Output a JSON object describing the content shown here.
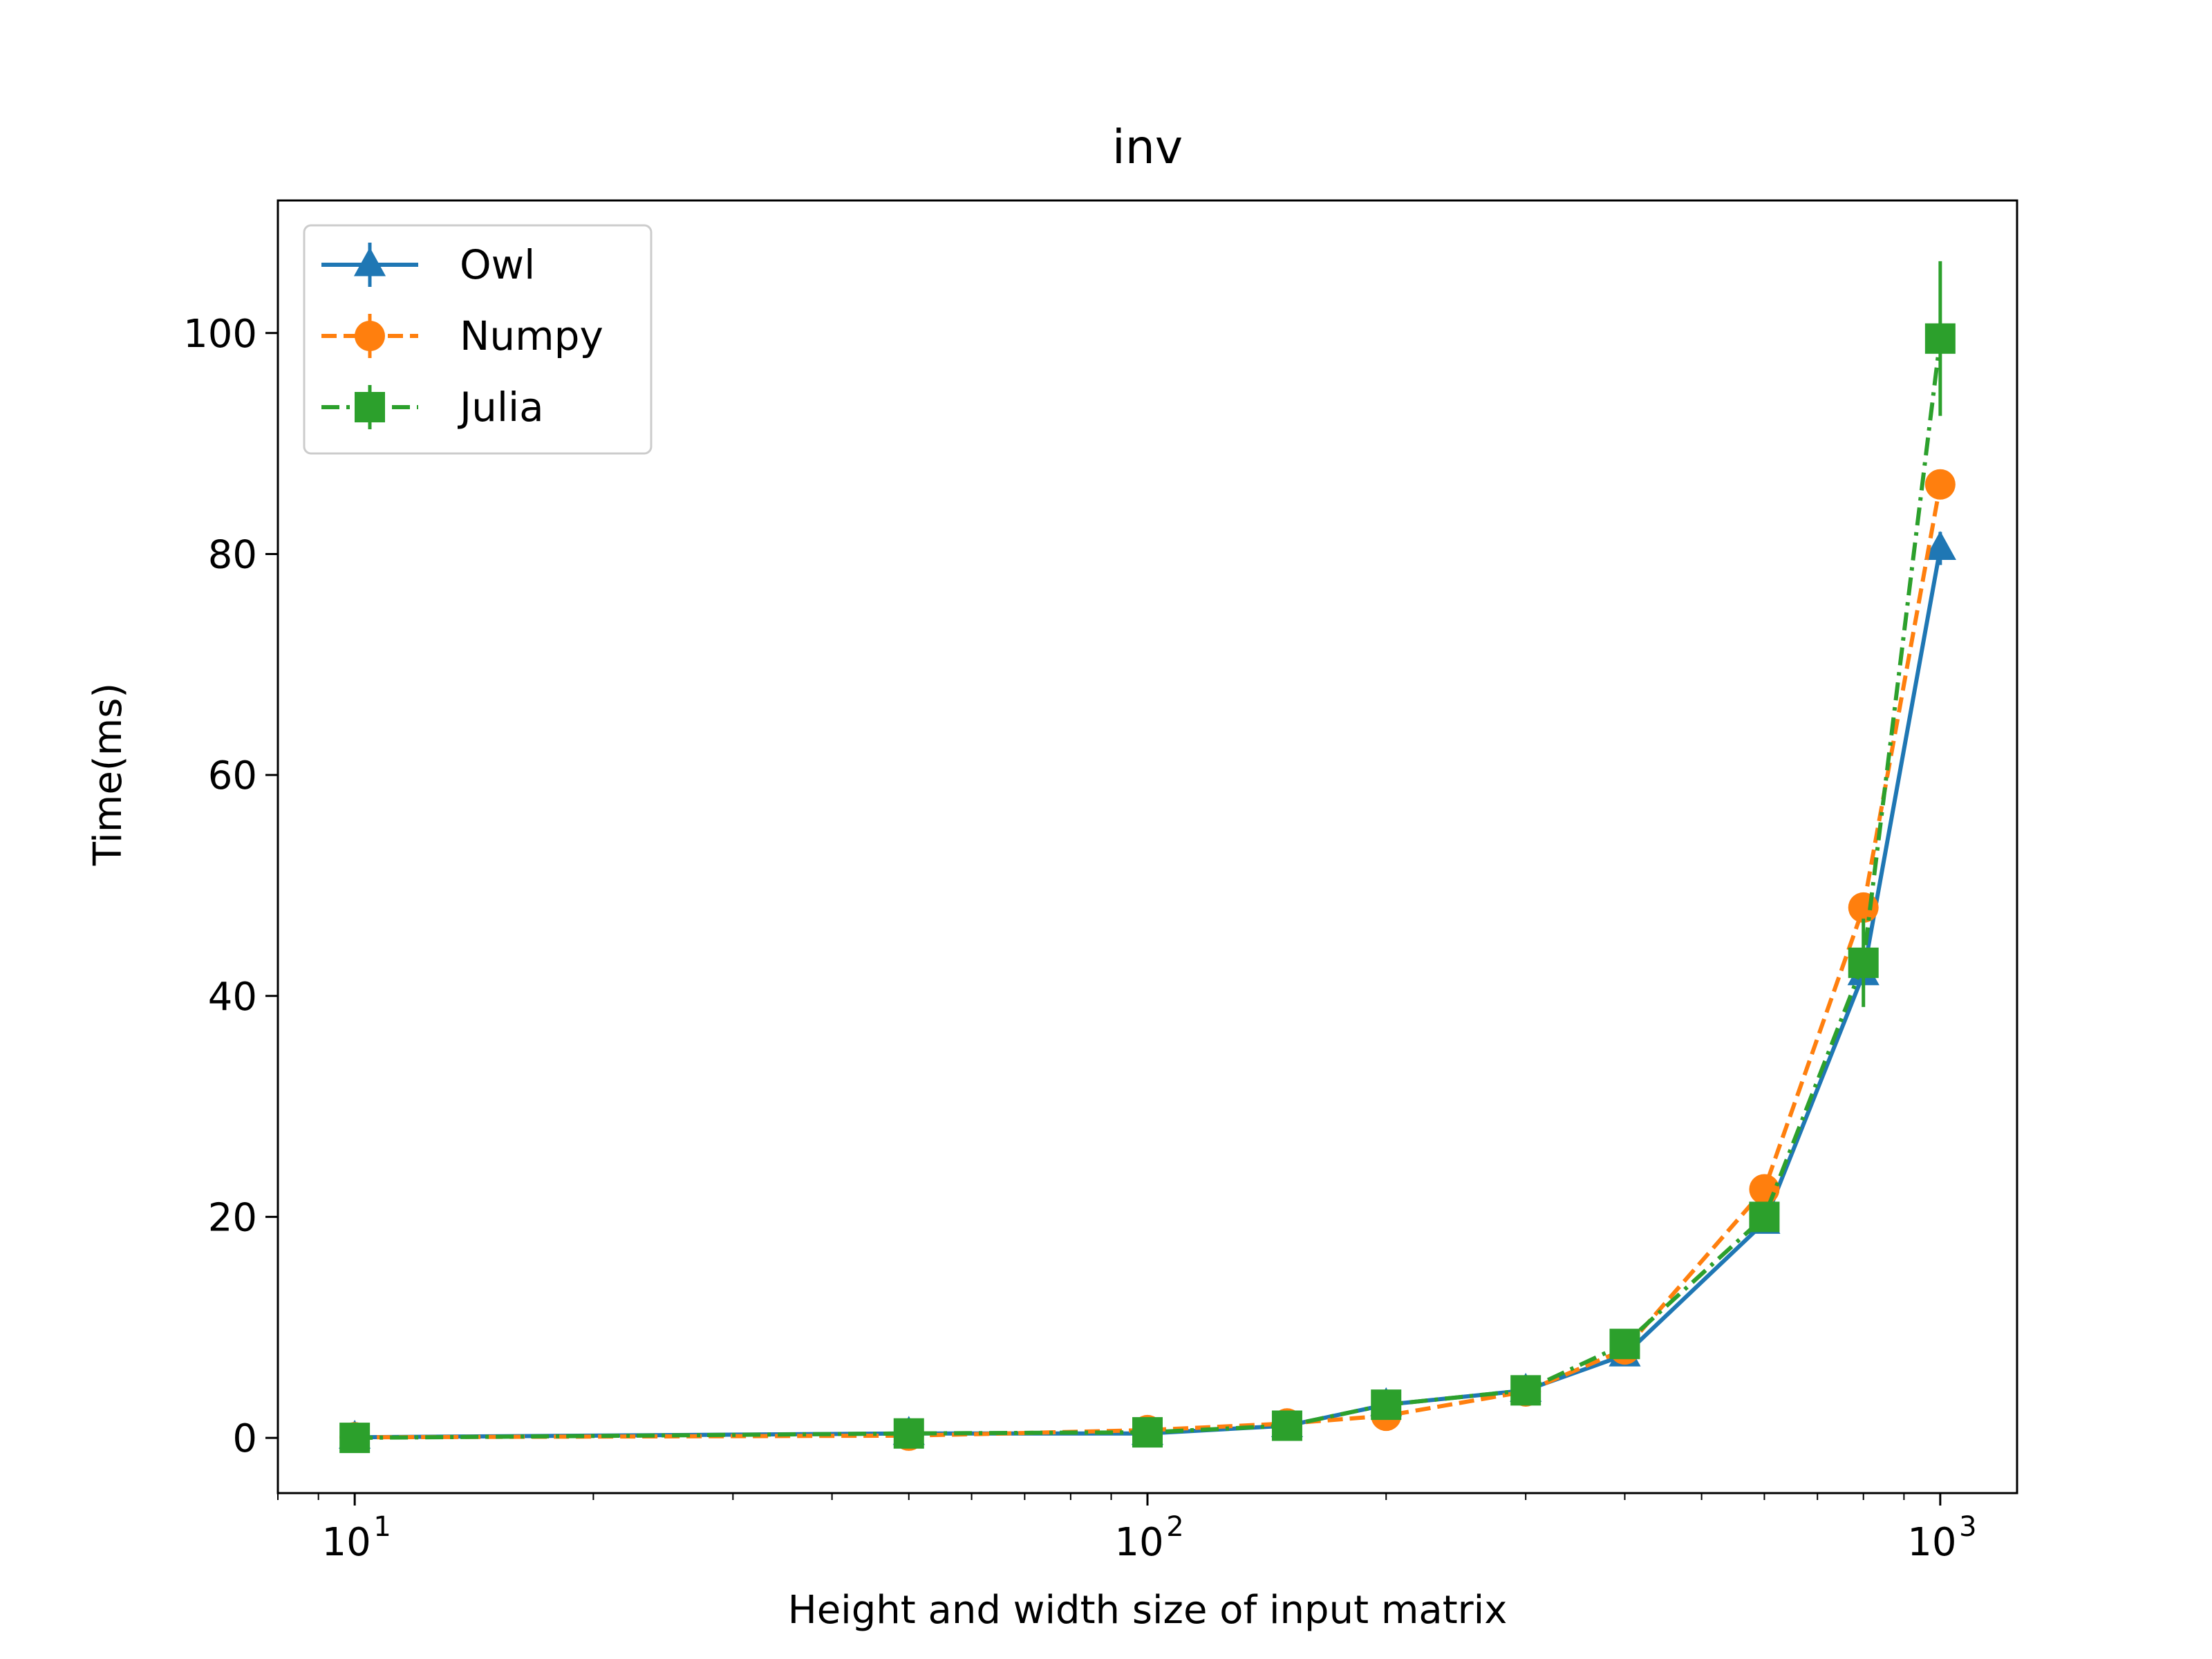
{
  "chart_data": {
    "type": "line",
    "title": "inv",
    "xlabel": "Height and width size of input matrix",
    "ylabel": "Time(ms)",
    "xscale": "log",
    "xlim": [
      8,
      1250
    ],
    "ylim": [
      -5,
      112
    ],
    "x_ticks": [
      {
        "value": 10,
        "base": "10",
        "exp": "1"
      },
      {
        "value": 100,
        "base": "10",
        "exp": "2"
      },
      {
        "value": 1000,
        "base": "10",
        "exp": "3"
      }
    ],
    "y_ticks": [
      0,
      20,
      40,
      60,
      80,
      100
    ],
    "grid": false,
    "legend_position": "upper-left",
    "x": [
      10,
      50,
      100,
      150,
      200,
      300,
      400,
      600,
      800,
      1000
    ],
    "series": [
      {
        "name": "Owl",
        "color": "#1f77b4",
        "marker": "triangle",
        "linestyle": "solid",
        "values": [
          0.05,
          0.4,
          0.4,
          1.1,
          3.0,
          4.3,
          7.5,
          19.5,
          42.0,
          80.5
        ],
        "errors": [
          0,
          0,
          0,
          0,
          0.2,
          0.3,
          0.5,
          0.7,
          1.0,
          1.5
        ]
      },
      {
        "name": "Numpy",
        "color": "#ff7f0e",
        "marker": "circle",
        "linestyle": "dashed",
        "values": [
          0.05,
          0.2,
          0.7,
          1.3,
          2.0,
          4.2,
          8.0,
          22.5,
          48.0,
          86.3
        ],
        "errors": [
          0,
          0,
          0,
          0,
          0.2,
          0.3,
          0.5,
          0.8,
          1.0,
          1.2
        ]
      },
      {
        "name": "Julia",
        "color": "#2ca02c",
        "marker": "square",
        "linestyle": "dashdot",
        "values": [
          0.0,
          0.4,
          0.5,
          1.1,
          3.0,
          4.3,
          8.5,
          20.0,
          43.0,
          99.5
        ],
        "errors": [
          0,
          0,
          0,
          0,
          0.3,
          0.4,
          0.6,
          1.0,
          4.0,
          7.0
        ]
      }
    ]
  }
}
